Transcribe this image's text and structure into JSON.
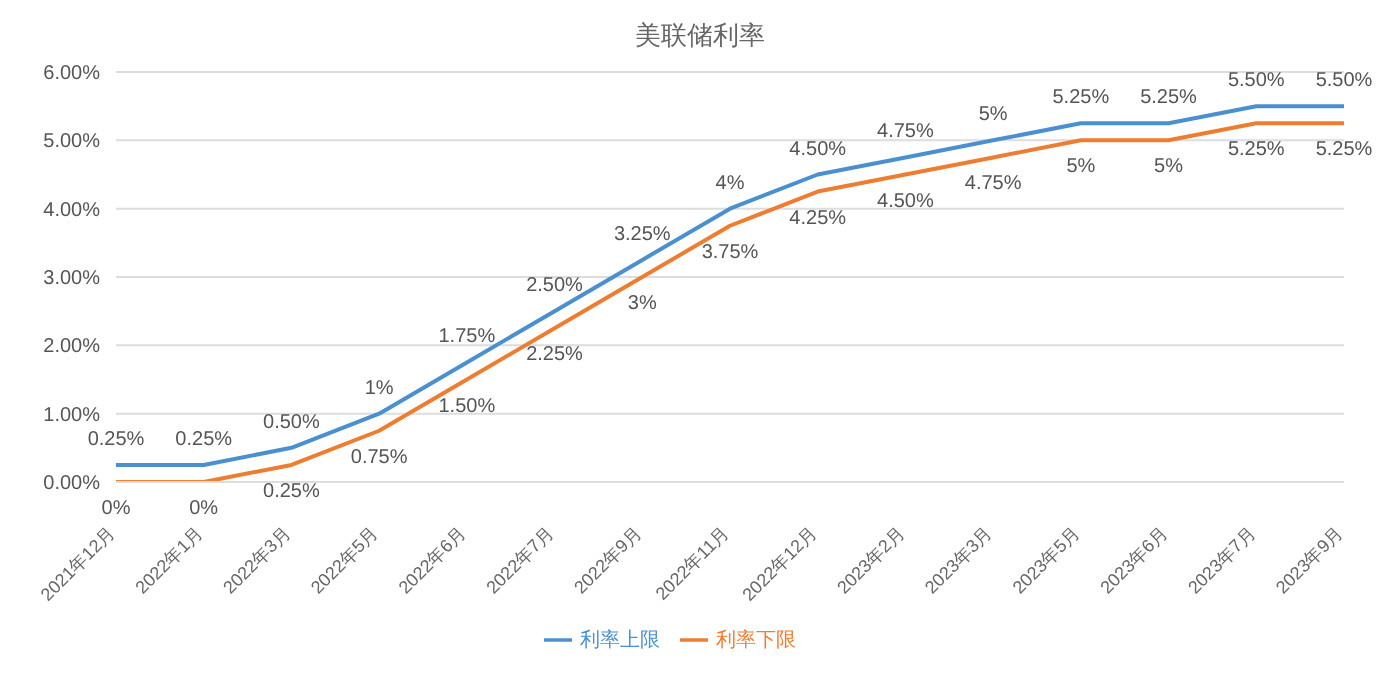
{
  "chart_data": {
    "type": "line",
    "title": "美联储利率",
    "categories": [
      "2021年12月",
      "2022年1月",
      "2022年3月",
      "2022年5月",
      "2022年6月",
      "2022年7月",
      "2022年9月",
      "2022年11月",
      "2022年12月",
      "2023年2月",
      "2023年3月",
      "2023年5月",
      "2023年6月",
      "2023年7月",
      "2023年9月"
    ],
    "series": [
      {
        "name": "利率上限",
        "color": "#4a90d0",
        "values": [
          0.25,
          0.25,
          0.5,
          1,
          1.75,
          2.5,
          3.25,
          4,
          4.5,
          4.75,
          5,
          5.25,
          5.25,
          5.5,
          5.5
        ],
        "value_labels": [
          "0.25%",
          "0.25%",
          "0.50%",
          "1%",
          "1.75%",
          "2.50%",
          "3.25%",
          "4%",
          "4.50%",
          "4.75%",
          "5%",
          "5.25%",
          "5.25%",
          "5.50%",
          "5.50%"
        ]
      },
      {
        "name": "利率下限",
        "color": "#ed7d31",
        "values": [
          0,
          0,
          0.25,
          0.75,
          1.5,
          2.25,
          3,
          3.75,
          4.25,
          4.5,
          4.75,
          5,
          5,
          5.25,
          5.25
        ],
        "value_labels": [
          "0%",
          "0%",
          "0.25%",
          "0.75%",
          "1.50%",
          "2.25%",
          "3%",
          "3.75%",
          "4.25%",
          "4.50%",
          "4.75%",
          "5%",
          "5%",
          "5.25%",
          "5.25%"
        ]
      }
    ],
    "ylim": [
      0,
      6
    ],
    "yticks": [
      {
        "value": 0,
        "label": "0.00%"
      },
      {
        "value": 1,
        "label": "1.00%"
      },
      {
        "value": 2,
        "label": "2.00%"
      },
      {
        "value": 3,
        "label": "3.00%"
      },
      {
        "value": 4,
        "label": "4.00%"
      },
      {
        "value": 5,
        "label": "5.00%"
      },
      {
        "value": 6,
        "label": "6.00%"
      }
    ],
    "grid": "y",
    "legend": "bottom",
    "marker": "none",
    "line_style": "solid"
  }
}
